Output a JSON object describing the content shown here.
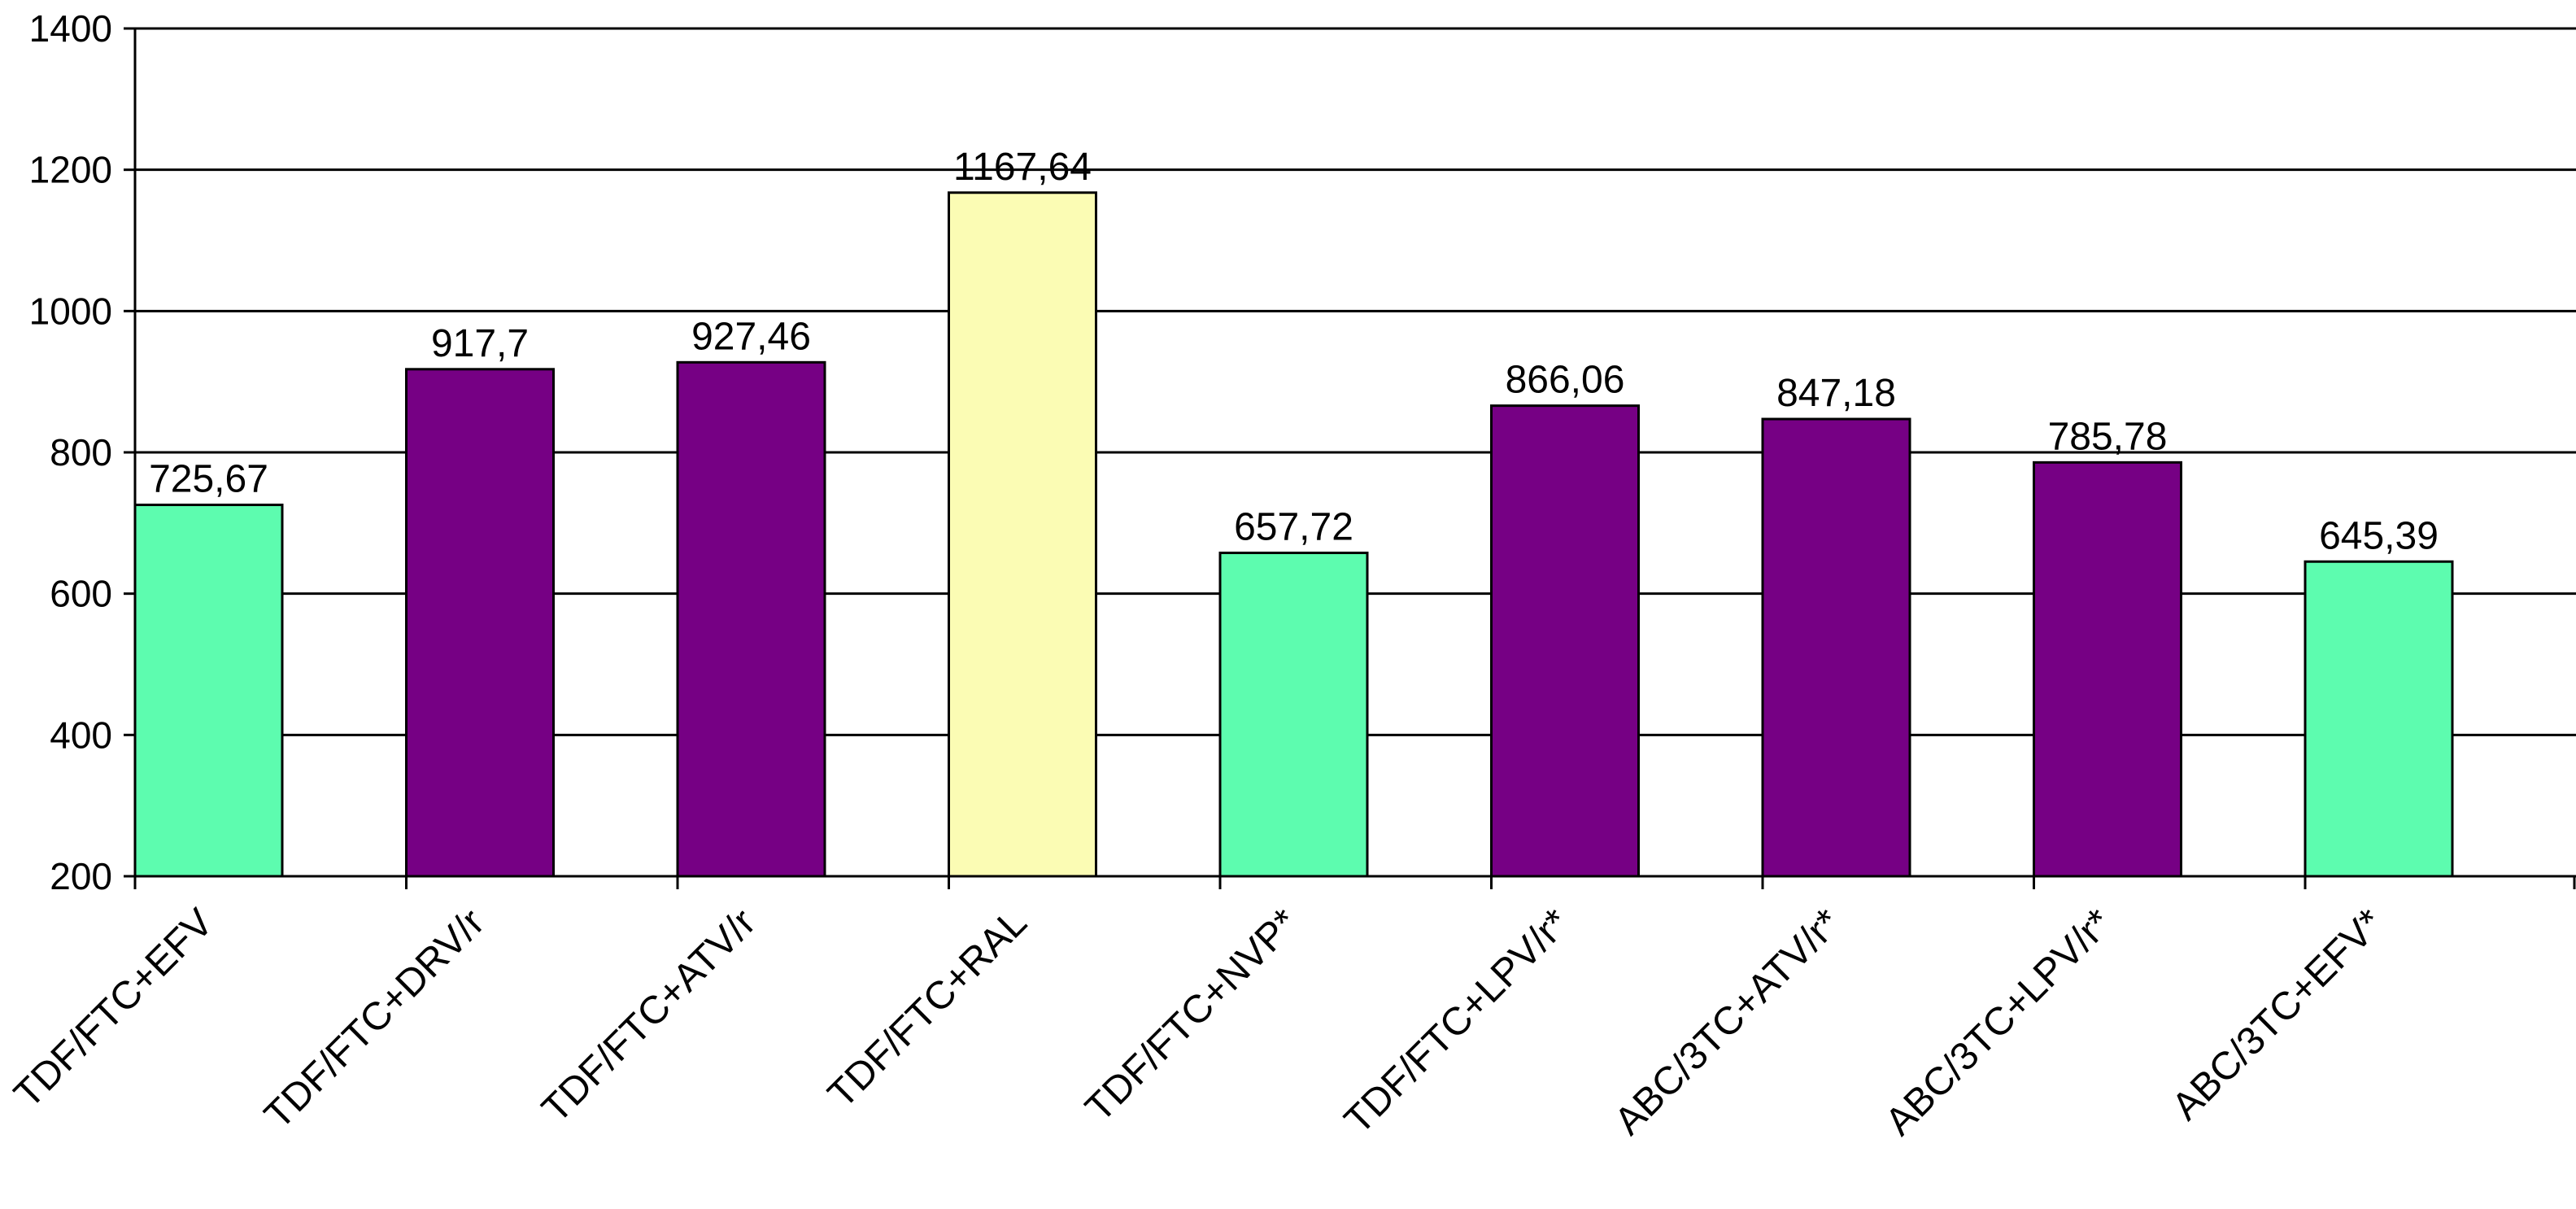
{
  "chart_data": {
    "type": "bar",
    "title": "",
    "xlabel": "",
    "ylabel": "",
    "ylim": [
      200,
      1400
    ],
    "yticks": [
      "200",
      "400",
      "600",
      "800",
      "1000",
      "1200",
      "1400"
    ],
    "ytick_values": [
      200,
      400,
      600,
      800,
      1000,
      1200,
      1400
    ],
    "grid": true,
    "legend": "none",
    "categories": [
      "TDF/FTC+EFV",
      "TDF/FTC+DRV/r",
      "TDF/FTC+ATV/r",
      "TDF/FTC+RAL",
      "TDF/FTC+NVP*",
      "TDF/FTC+LPV/r*",
      "ABC/3TC+ATV/r*",
      "ABC/3TC+LPV/r*",
      "ABC/3TC+EFV*"
    ],
    "values": [
      725.67,
      917.7,
      927.46,
      1167.64,
      657.72,
      866.06,
      847.18,
      785.78,
      645.39
    ],
    "value_labels": [
      "725,67",
      "917,7",
      "927,46",
      "1167,64",
      "657,72",
      "866,06",
      "847,18",
      "785,78",
      "645,39"
    ],
    "bar_colors": [
      "#5dfcaf",
      "#760084",
      "#760084",
      "#fbfcb4",
      "#5dfcaf",
      "#760084",
      "#760084",
      "#760084",
      "#5dfcaf"
    ]
  }
}
